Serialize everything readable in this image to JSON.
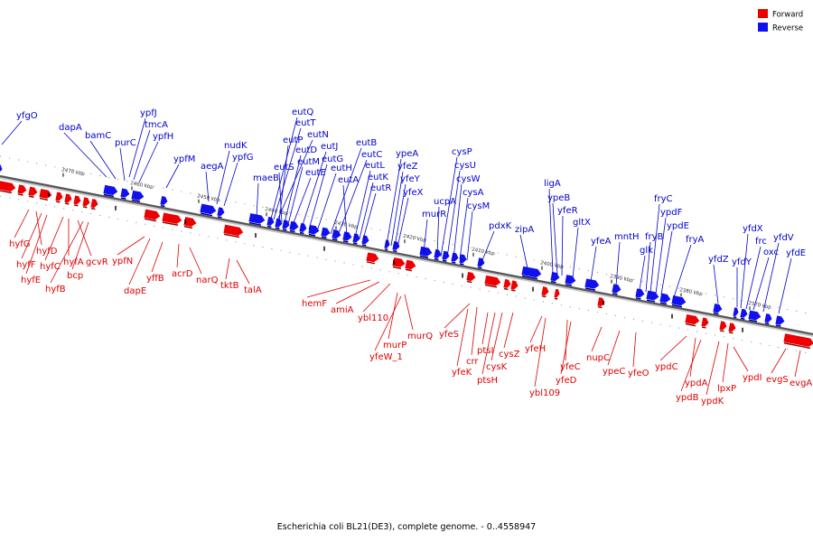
{
  "caption": "Escherichia coli BL21(DE3), complete genome. - 0..4558947",
  "legend": [
    {
      "label": "Forward",
      "color": "#ee0000"
    },
    {
      "label": "Reverse",
      "color": "#1111ee"
    }
  ],
  "colors": {
    "forward": "#ee0000",
    "reverse": "#1111ee",
    "backbone": "#555555",
    "leader_fwd": "#dd0000",
    "leader_rev": "#0000cc"
  },
  "kbp_labels": [
    "2470 kbp",
    "2460 kbp",
    "2450 kbp",
    "2440 kbp",
    "2430 kbp",
    "2420 kbp",
    "2410 kbp",
    "2400 kbp",
    "2390 kbp",
    "2380 kbp",
    "2370 kbp"
  ],
  "reverse_genes": [
    "yfgO",
    "dapA",
    "bamC",
    "purC",
    "ypfJ",
    "tmcA",
    "ypfH",
    "ypfM",
    "aegA",
    "nudK",
    "ypfG",
    "maeB",
    "eutQ",
    "eutT",
    "eutN",
    "eutP",
    "eutS",
    "eutD",
    "eutM",
    "eutE",
    "eutJ",
    "eutG",
    "eutH",
    "eutB",
    "eutC",
    "eutA",
    "eutL",
    "eutK",
    "eutR",
    "ypeA",
    "yfeZ",
    "yfeY",
    "yfeX",
    "murR",
    "ucpA",
    "cysP",
    "cysU",
    "cysW",
    "cysA",
    "cysM",
    "pdxK",
    "zipA",
    "ligA",
    "ypeB",
    "yfeR",
    "gltX",
    "yfeA",
    "mntH",
    "glk",
    "fryB",
    "fryC",
    "ypdF",
    "ypdE",
    "fryA",
    "yfdZ",
    "yfdY",
    "yfdX",
    "frc",
    "oxc",
    "yfdV",
    "yfdE"
  ],
  "forward_genes": [
    "hyfG",
    "hyfD",
    "hyfF",
    "hyfE",
    "hyfC",
    "hyfA",
    "gcvR",
    "hyfB",
    "bcp",
    "ypfN",
    "dapE",
    "yffB",
    "acrD",
    "narQ",
    "tktB",
    "talA",
    "hemF",
    "amiA",
    "ybl110",
    "murP",
    "murQ",
    "yfeW_1",
    "yfeS",
    "crr",
    "yfeK",
    "ptsI",
    "ptsH",
    "cysK",
    "cysZ",
    "yfeH",
    "ybl109",
    "yfeC",
    "yfeD",
    "nupC",
    "ypeC",
    "yfeO",
    "ypdC",
    "ypdA",
    "ypdB",
    "ypdK",
    "lpxP",
    "ypdI",
    "evgS",
    "evgA"
  ]
}
